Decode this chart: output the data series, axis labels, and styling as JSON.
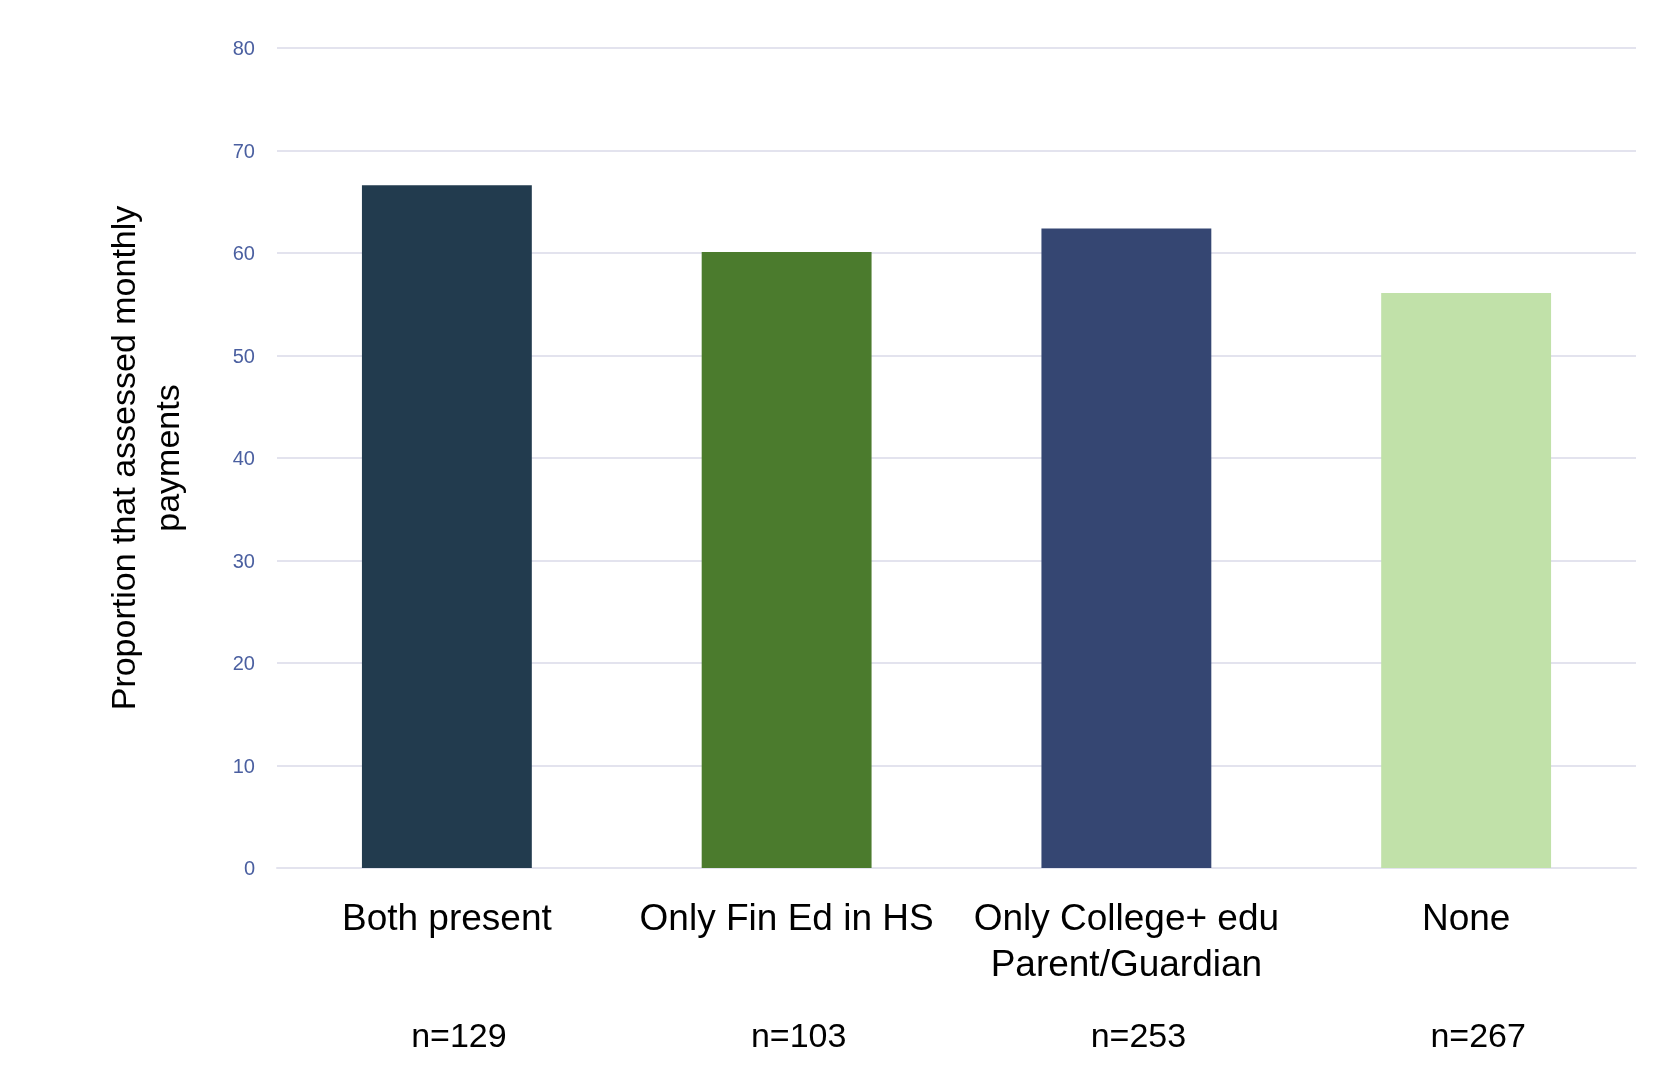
{
  "chart_data": {
    "type": "bar",
    "ylabel": "Proportion that assessed monthly\npayments",
    "categories": [
      "Both present",
      "Only Fin Ed in HS",
      "Only College+ edu\nParent/Guardian",
      "None"
    ],
    "values": [
      66.6,
      60.1,
      62.4,
      56.1
    ],
    "colors": [
      "#223b4e",
      "#4b7b2d",
      "#354672",
      "#c1e1a9"
    ],
    "ylim": [
      0,
      80
    ],
    "yticks": [
      0,
      10,
      20,
      30,
      40,
      50,
      60,
      70,
      80
    ],
    "grid": "y",
    "annotations": [
      "n=129",
      "n=103",
      "n=253",
      "n=267"
    ]
  }
}
